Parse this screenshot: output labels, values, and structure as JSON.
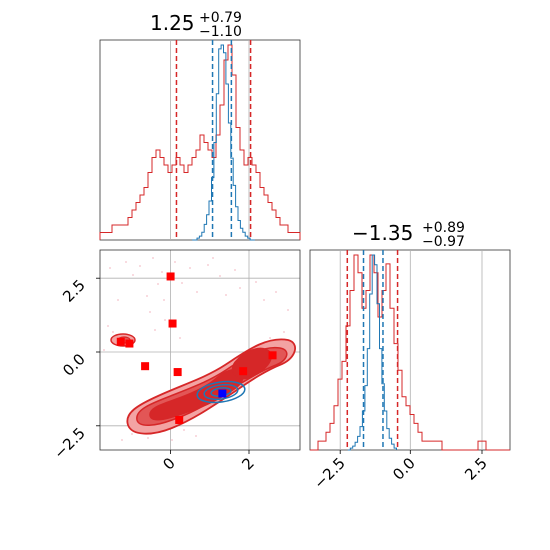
{
  "chart_data": [
    {
      "panel": "top-left",
      "type": "histogram",
      "title": {
        "median": "1.25",
        "plus": "+0.79",
        "minus": "−1.10"
      },
      "xlim": [
        -1.8,
        3.3
      ],
      "grid": true,
      "series": [
        {
          "color": "#d62728",
          "bins": [
            -1.8,
            3.3
          ],
          "values": [
            1,
            1,
            1,
            2,
            2,
            2,
            2,
            3,
            4,
            5,
            6,
            7,
            9,
            11,
            12,
            11,
            10,
            9,
            10,
            11,
            10,
            9,
            10,
            11,
            12,
            14,
            13,
            12,
            11,
            14,
            18,
            24,
            26,
            22,
            15,
            12,
            10,
            11,
            10,
            9,
            7,
            6,
            5,
            4,
            3,
            2,
            2,
            1,
            1,
            1
          ]
        },
        {
          "color": "#1f77b4",
          "bins": [
            0.55,
            2.15
          ],
          "values": [
            0,
            0,
            1,
            2,
            4,
            8,
            13,
            20,
            32,
            50,
            75,
            98,
            100,
            96,
            80,
            60,
            42,
            28,
            17,
            10,
            6,
            4,
            2,
            1,
            0,
            0
          ]
        }
      ],
      "red_lines": [
        0.15,
        2.04
      ],
      "blue_lines": [
        1.07,
        1.55
      ]
    },
    {
      "panel": "bottom-left",
      "type": "contour",
      "xlim": [
        -1.8,
        3.3
      ],
      "ylim": [
        -3.3,
        3.5
      ],
      "xticks": [
        "0",
        "2"
      ],
      "yticks": [
        "−2.5",
        "0.0",
        "2.5"
      ],
      "grid": true,
      "red_squares": [
        [
          -1.27,
          0.38
        ],
        [
          -1.05,
          0.32
        ],
        [
          -0.65,
          -0.45
        ],
        [
          0.0,
          2.6
        ],
        [
          0.05,
          1.0
        ],
        [
          0.18,
          -0.65
        ],
        [
          0.22,
          -2.28
        ],
        [
          1.85,
          -0.62
        ],
        [
          2.6,
          -0.08
        ]
      ],
      "blue_square": [
        1.32,
        -1.38
      ],
      "red_contour_fills": [
        "#f3a3a3",
        "#e25656",
        "#d62728"
      ],
      "blue_contour": "#1f77b4"
    },
    {
      "panel": "bottom-right",
      "type": "histogram",
      "title": {
        "median": "−1.35",
        "plus": "+0.89",
        "minus": "−0.97"
      },
      "xlim": [
        -3.7,
        3.7
      ],
      "xticks": [
        "−2.5",
        "0.0",
        "2.5"
      ],
      "grid": true,
      "series": [
        {
          "color": "#d62728",
          "bins": [
            -3.7,
            3.7
          ],
          "values": [
            0,
            0,
            1,
            1,
            2,
            3,
            5,
            8,
            10,
            14,
            18,
            22,
            20,
            16,
            18,
            22,
            20,
            15,
            18,
            21,
            16,
            12,
            9,
            6,
            5,
            4,
            3,
            2,
            1,
            1,
            1,
            1,
            1,
            0,
            0,
            0,
            0,
            0,
            0,
            0,
            0,
            0,
            1,
            1,
            0,
            0,
            0,
            0,
            0,
            0
          ]
        },
        {
          "color": "#1f77b4",
          "bins": [
            -2.3,
            -0.5
          ],
          "values": [
            0,
            1,
            2,
            4,
            7,
            12,
            20,
            33,
            52,
            80,
            100,
            95,
            75,
            52,
            34,
            20,
            11,
            6,
            3,
            1
          ]
        }
      ],
      "red_lines": [
        -2.32,
        -0.46
      ],
      "blue_lines": [
        -1.72,
        -1.0
      ]
    }
  ]
}
